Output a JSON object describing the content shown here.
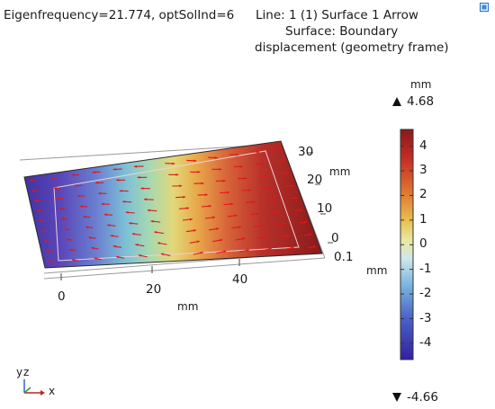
{
  "header": {
    "left": "Eigenfrequency=21.774, optSolInd=6",
    "right_line1": "Line: 1 (1) Surface 1  Arrow",
    "right_line2": "Surface: Boundary",
    "right_line3": "displacement (geometry frame)"
  },
  "axes": {
    "x_ticks": [
      "0",
      "20",
      "40"
    ],
    "x_unit": "mm",
    "y_ticks": [
      "30",
      "20",
      "10",
      "0"
    ],
    "y_unit": "mm",
    "z_tick": "0.1",
    "z_unit": "mm"
  },
  "colorbar": {
    "unit": "mm",
    "max_label": "4.68",
    "min_label": "-4.66",
    "ticks": [
      "4",
      "3",
      "2",
      "1",
      "0",
      "-1",
      "-2",
      "-3",
      "-4"
    ],
    "max": 4.68,
    "min": -4.66,
    "colors": [
      "#3a2aa0",
      "#4a6ad0",
      "#7fb8e0",
      "#cfe8e8",
      "#e6e08a",
      "#f0b040",
      "#e0602a",
      "#b81c1c"
    ]
  },
  "triad": {
    "y_label": "y",
    "z_label": "z",
    "x_label": "x"
  },
  "icons": {
    "corner": "display-window-icon",
    "max_marker": "triangle-up-icon",
    "min_marker": "triangle-down-icon"
  }
}
